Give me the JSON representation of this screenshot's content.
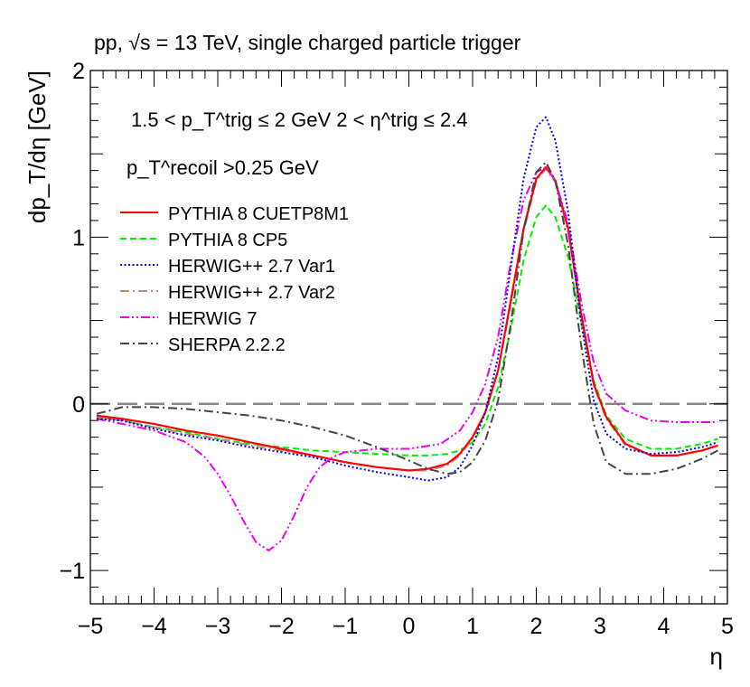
{
  "chart_data": {
    "type": "line",
    "title": "pp, √s = 13 TeV,  single charged particle trigger",
    "xlabel": "η",
    "ylabel": "dp_T/dη [GeV]",
    "xlim": [
      -5,
      5
    ],
    "ylim": [
      -1.2,
      2
    ],
    "x_ticks": [
      "−5",
      "−4",
      "−3",
      "−2",
      "−1",
      "0",
      "1",
      "2",
      "3",
      "4",
      "5"
    ],
    "y_ticks": [
      "−1",
      "0",
      "1",
      "2"
    ],
    "annotations": {
      "trigger_cut": "1.5 < p_T^trig ≤ 2 GeV   2 < η^trig ≤ 2.4",
      "recoil_cut": "p_T^recoil >0.25 GeV"
    },
    "reference_line_y": 0,
    "legend_position": "top-left",
    "series": [
      {
        "name": "PYTHIA 8 CUETP8M1",
        "color": "#ff0000",
        "style": "solid",
        "x": [
          -4.9,
          -4.5,
          -4,
          -3.5,
          -3,
          -2.5,
          -2,
          -1.5,
          -1,
          -0.5,
          0,
          0.3,
          0.6,
          0.8,
          1.0,
          1.2,
          1.4,
          1.6,
          1.8,
          2.0,
          2.15,
          2.3,
          2.5,
          2.7,
          2.9,
          3.1,
          3.4,
          3.8,
          4.2,
          4.6,
          4.85
        ],
        "y": [
          -0.07,
          -0.09,
          -0.12,
          -0.16,
          -0.19,
          -0.23,
          -0.27,
          -0.31,
          -0.35,
          -0.38,
          -0.4,
          -0.39,
          -0.36,
          -0.3,
          -0.2,
          -0.05,
          0.2,
          0.62,
          1.05,
          1.35,
          1.42,
          1.34,
          1.05,
          0.55,
          0.12,
          -0.08,
          -0.24,
          -0.31,
          -0.31,
          -0.28,
          -0.25
        ]
      },
      {
        "name": "PYTHIA 8 CP5",
        "color": "#00ee00",
        "style": "dashed",
        "x": [
          -4.9,
          -4.5,
          -4,
          -3.5,
          -3,
          -2.5,
          -2,
          -1.5,
          -1,
          -0.5,
          0,
          0.3,
          0.6,
          0.8,
          1.0,
          1.2,
          1.4,
          1.6,
          1.8,
          2.0,
          2.15,
          2.3,
          2.5,
          2.7,
          2.9,
          3.1,
          3.4,
          3.8,
          4.2,
          4.6,
          4.85
        ],
        "y": [
          -0.08,
          -0.1,
          -0.14,
          -0.17,
          -0.21,
          -0.24,
          -0.26,
          -0.28,
          -0.29,
          -0.3,
          -0.31,
          -0.31,
          -0.3,
          -0.28,
          -0.23,
          -0.12,
          0.1,
          0.45,
          0.86,
          1.12,
          1.19,
          1.12,
          0.88,
          0.5,
          0.14,
          -0.07,
          -0.21,
          -0.27,
          -0.27,
          -0.24,
          -0.21
        ]
      },
      {
        "name": "HERWIG++ 2.7 Var1",
        "color": "#0000ee",
        "style": "dotted",
        "x": [
          -4.9,
          -4.5,
          -4,
          -3.5,
          -3,
          -2.5,
          -2,
          -1.5,
          -1,
          -0.5,
          0,
          0.3,
          0.6,
          0.8,
          1.0,
          1.2,
          1.4,
          1.6,
          1.8,
          2.0,
          2.15,
          2.3,
          2.5,
          2.7,
          2.9,
          3.1,
          3.4,
          3.8,
          4.2,
          4.6,
          4.85
        ],
        "y": [
          -0.09,
          -0.1,
          -0.15,
          -0.19,
          -0.22,
          -0.26,
          -0.29,
          -0.32,
          -0.37,
          -0.41,
          -0.44,
          -0.46,
          -0.44,
          -0.38,
          -0.25,
          -0.05,
          0.28,
          0.82,
          1.35,
          1.66,
          1.72,
          1.58,
          1.15,
          0.5,
          0.02,
          -0.18,
          -0.27,
          -0.3,
          -0.29,
          -0.26,
          -0.23
        ]
      },
      {
        "name": "HERWIG++ 2.7 Var2",
        "color": "#c08a78",
        "style": "dashdot",
        "x": [
          -4.9,
          -4.5,
          -4,
          -3.5,
          -3,
          -2.5,
          -2,
          -1.5,
          -1,
          -0.5,
          0,
          0.3,
          0.6,
          0.8,
          1.0,
          1.2,
          1.4,
          1.6,
          1.8,
          2.0,
          2.15,
          2.3,
          2.5,
          2.7,
          2.9,
          3.1,
          3.4,
          3.8,
          4.2,
          4.6,
          4.85
        ],
        "y": [
          -0.08,
          -0.1,
          -0.14,
          -0.18,
          -0.21,
          -0.25,
          -0.28,
          -0.31,
          -0.35,
          -0.38,
          -0.4,
          -0.4,
          -0.37,
          -0.31,
          -0.21,
          -0.05,
          0.2,
          0.6,
          1.03,
          1.34,
          1.41,
          1.33,
          1.03,
          0.54,
          0.11,
          -0.09,
          -0.25,
          -0.31,
          -0.31,
          -0.28,
          -0.25
        ]
      },
      {
        "name": "HERWIG 7",
        "color": "#ee00ee",
        "style": "dashdotdot",
        "x": [
          -4.9,
          -4.5,
          -4,
          -3.5,
          -3.2,
          -3.0,
          -2.8,
          -2.6,
          -2.4,
          -2.2,
          -2.0,
          -1.8,
          -1.6,
          -1.4,
          -1.2,
          -1.0,
          -0.5,
          0,
          0.5,
          0.8,
          1.0,
          1.2,
          1.4,
          1.6,
          1.8,
          2.0,
          2.15,
          2.3,
          2.5,
          2.7,
          2.9,
          3.1,
          3.4,
          3.8,
          4.2,
          4.6,
          4.85
        ],
        "y": [
          -0.09,
          -0.12,
          -0.16,
          -0.23,
          -0.32,
          -0.42,
          -0.55,
          -0.7,
          -0.83,
          -0.88,
          -0.82,
          -0.67,
          -0.5,
          -0.38,
          -0.32,
          -0.29,
          -0.27,
          -0.27,
          -0.24,
          -0.16,
          -0.05,
          0.12,
          0.4,
          0.85,
          1.22,
          1.39,
          1.42,
          1.34,
          1.08,
          0.62,
          0.25,
          0.06,
          -0.04,
          -0.1,
          -0.11,
          -0.11,
          -0.11
        ]
      },
      {
        "name": "SHERPA 2.2.2",
        "color": "#444444",
        "style": "dashdot",
        "x": [
          -4.9,
          -4.5,
          -4,
          -3.5,
          -3,
          -2.5,
          -2,
          -1.5,
          -1,
          -0.5,
          0,
          0.3,
          0.6,
          0.8,
          1.0,
          1.2,
          1.4,
          1.6,
          1.8,
          2.0,
          2.15,
          2.3,
          2.5,
          2.7,
          2.9,
          3.1,
          3.4,
          3.8,
          4.2,
          4.6,
          4.85
        ],
        "y": [
          -0.06,
          -0.02,
          -0.02,
          -0.03,
          -0.05,
          -0.07,
          -0.1,
          -0.14,
          -0.19,
          -0.26,
          -0.34,
          -0.39,
          -0.42,
          -0.41,
          -0.35,
          -0.22,
          0.02,
          0.48,
          1.04,
          1.39,
          1.45,
          1.34,
          0.95,
          0.36,
          -0.12,
          -0.35,
          -0.42,
          -0.42,
          -0.39,
          -0.33,
          -0.28
        ]
      }
    ]
  }
}
